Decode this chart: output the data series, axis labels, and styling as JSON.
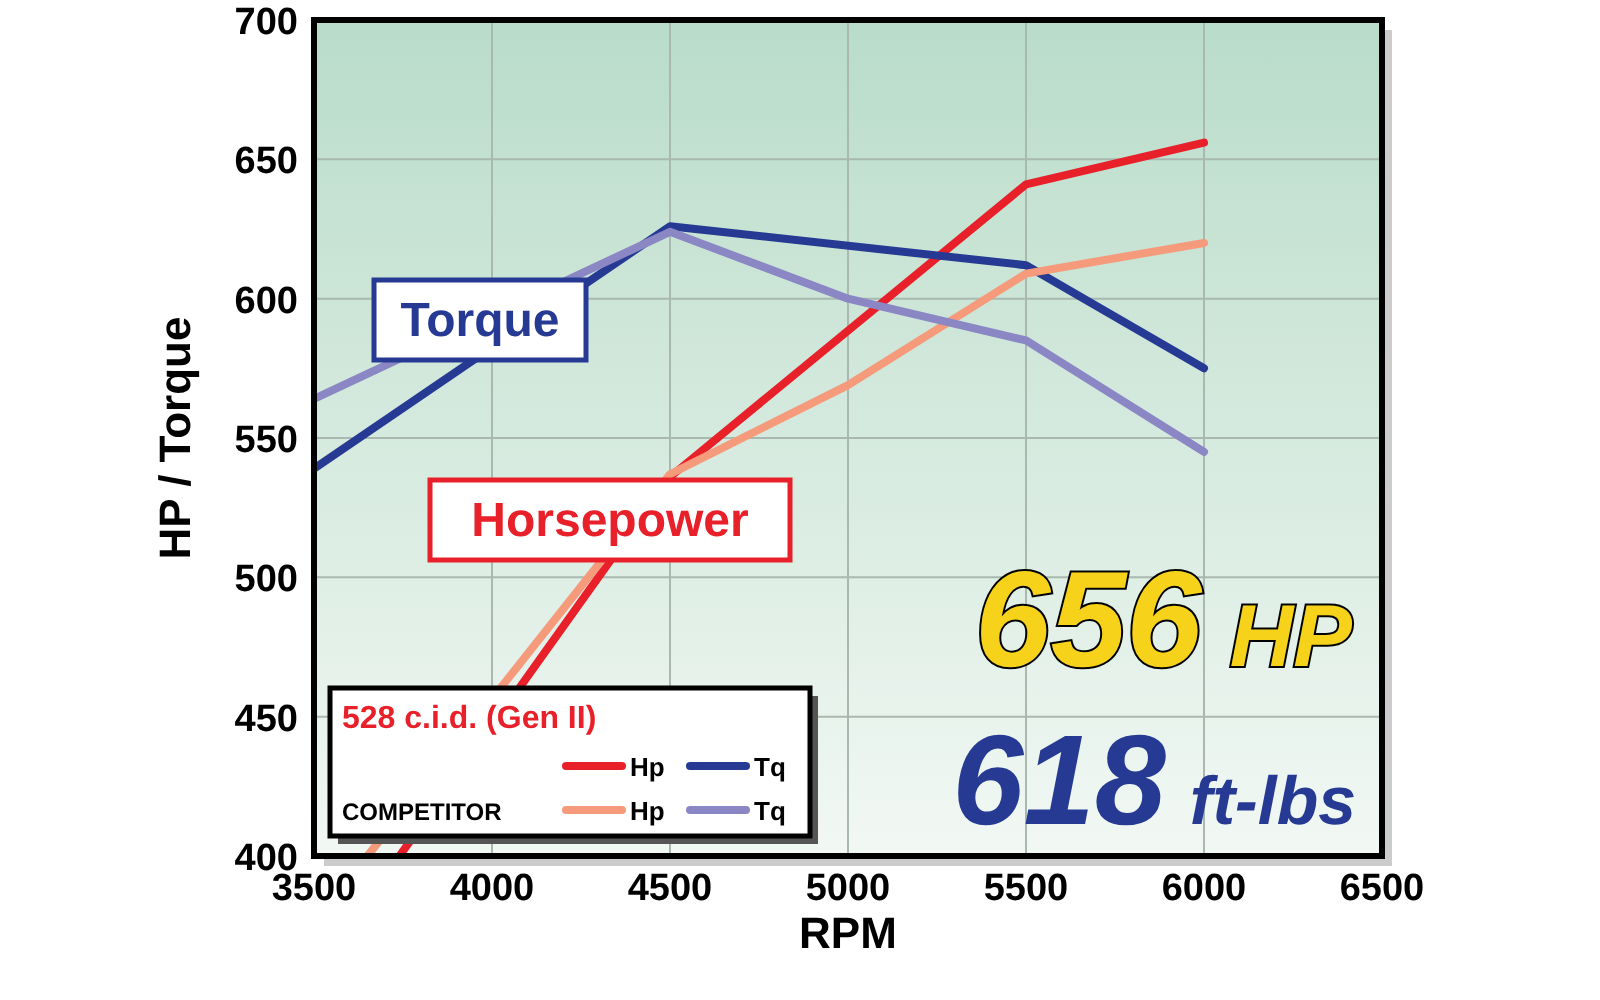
{
  "chart_data": {
    "type": "line",
    "xlabel": "RPM",
    "ylabel": "HP / Torque",
    "legend_title": "528 c.i.d. (Gen II)",
    "xlim": [
      3500,
      6500
    ],
    "ylim": [
      400,
      700
    ],
    "xticks": [
      3500,
      4000,
      4500,
      5000,
      5500,
      6000,
      6500
    ],
    "yticks": [
      400,
      450,
      500,
      550,
      600,
      650,
      700
    ],
    "grid": true,
    "legend": "bottom left",
    "line_style": "solid",
    "marker": "none",
    "series": [
      {
        "name": "Hp",
        "color": "#e8202a",
        "x": [
          3740,
          4500,
          5500,
          6000
        ],
        "values": [
          400,
          536,
          641,
          656
        ]
      },
      {
        "name": "Tq",
        "color": "#263a94",
        "x": [
          3500,
          4500,
          5500,
          6000
        ],
        "values": [
          539,
          626,
          612,
          575
        ]
      },
      {
        "name": "Hp",
        "color": "#f59a7a",
        "x": [
          3650,
          4500,
          5000,
          5500,
          6000
        ],
        "values": [
          400,
          537,
          569,
          609,
          620
        ]
      },
      {
        "name": "Tq",
        "color": "#8a87c4",
        "x": [
          3500,
          4500,
          5000,
          5500,
          6000
        ],
        "values": [
          564,
          624,
          600,
          585,
          545
        ]
      }
    ],
    "annotations": [
      "Torque",
      "Horsepower",
      "656 HP",
      "618 ft-lbs",
      "COMPETITOR"
    ]
  }
}
